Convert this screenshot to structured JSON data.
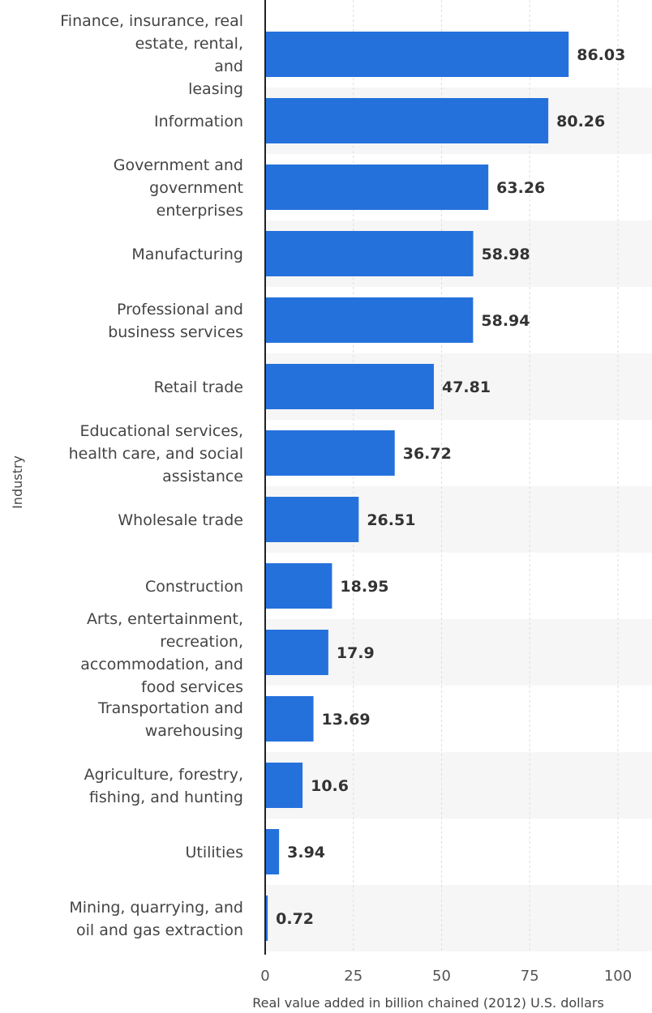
{
  "chart_data": {
    "type": "bar",
    "orientation": "horizontal",
    "title": "",
    "xlabel": "Real value added in billion chained (2012) U.S. dollars",
    "ylabel": "Industry",
    "xlim": [
      0,
      100
    ],
    "xticks": [
      0,
      25,
      50,
      75,
      100
    ],
    "categories": [
      "Finance, insurance, real estate, rental, and leasing",
      "Information",
      "Government and government enterprises",
      "Manufacturing",
      "Professional and business services",
      "Retail trade",
      "Educational services, health care, and social assistance",
      "Wholesale trade",
      "Construction",
      "Arts, entertainment, recreation, accommodation, and food services",
      "Transportation and warehousing",
      "Agriculture, forestry, fishing, and hunting",
      "Utilities",
      "Mining, quarrying, and oil and gas extraction"
    ],
    "category_label_lines": [
      [
        "Finance, insurance, real",
        "estate, rental,",
        "and",
        "leasing"
      ],
      [
        "Information"
      ],
      [
        "Government and",
        "government",
        "enterprises"
      ],
      [
        "Manufacturing"
      ],
      [
        "Professional and",
        "business services"
      ],
      [
        "Retail trade"
      ],
      [
        "Educational services,",
        "health care, and social",
        "assistance"
      ],
      [
        "Wholesale trade"
      ],
      [
        "Construction"
      ],
      [
        "Arts, entertainment,",
        "recreation,",
        "accommodation, and",
        "food services"
      ],
      [
        "Transportation and",
        "warehousing"
      ],
      [
        "Agriculture, forestry,",
        "fishing, and hunting"
      ],
      [
        "Utilities"
      ],
      [
        "Mining, quarrying, and",
        "oil and gas extraction"
      ]
    ],
    "values": [
      86.03,
      80.26,
      63.26,
      58.98,
      58.94,
      47.81,
      36.72,
      26.51,
      18.95,
      17.9,
      13.69,
      10.6,
      3.94,
      0.72
    ],
    "value_labels": [
      "86.03",
      "80.26",
      "63.26",
      "58.98",
      "58.94",
      "47.81",
      "36.72",
      "26.51",
      "18.95",
      "17.9",
      "13.69",
      "10.6",
      "3.94",
      "0.72"
    ],
    "grid": true,
    "bar_color": "#2571dc"
  }
}
